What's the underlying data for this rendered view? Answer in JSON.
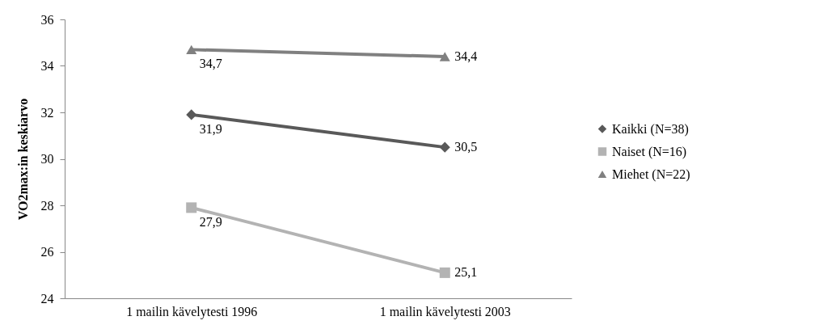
{
  "chart_data": {
    "type": "line",
    "ylabel": "VO2max:in keskiarvo",
    "categories": [
      "1 mailin kävelytesti 1996",
      "1 mailin kävelytesti 2003"
    ],
    "series": [
      {
        "name": "Kaikki (N=38)",
        "color": "#595959",
        "marker": "diamond",
        "values": [
          31.9,
          30.5
        ],
        "value_labels": [
          "31,9",
          "30,5"
        ]
      },
      {
        "name": "Naiset (N=16)",
        "color": "#b3b3b3",
        "marker": "square",
        "values": [
          27.9,
          25.1
        ],
        "value_labels": [
          "27,9",
          "25,1"
        ]
      },
      {
        "name": "Miehet (N=22)",
        "color": "#808080",
        "marker": "triangle",
        "values": [
          34.7,
          34.4
        ],
        "value_labels": [
          "34,7",
          "34,4"
        ]
      }
    ],
    "ylim": [
      24,
      36
    ],
    "yticks": [
      24,
      26,
      28,
      30,
      32,
      34,
      36
    ],
    "grid": false,
    "legend": "right",
    "line_style": "solid"
  }
}
